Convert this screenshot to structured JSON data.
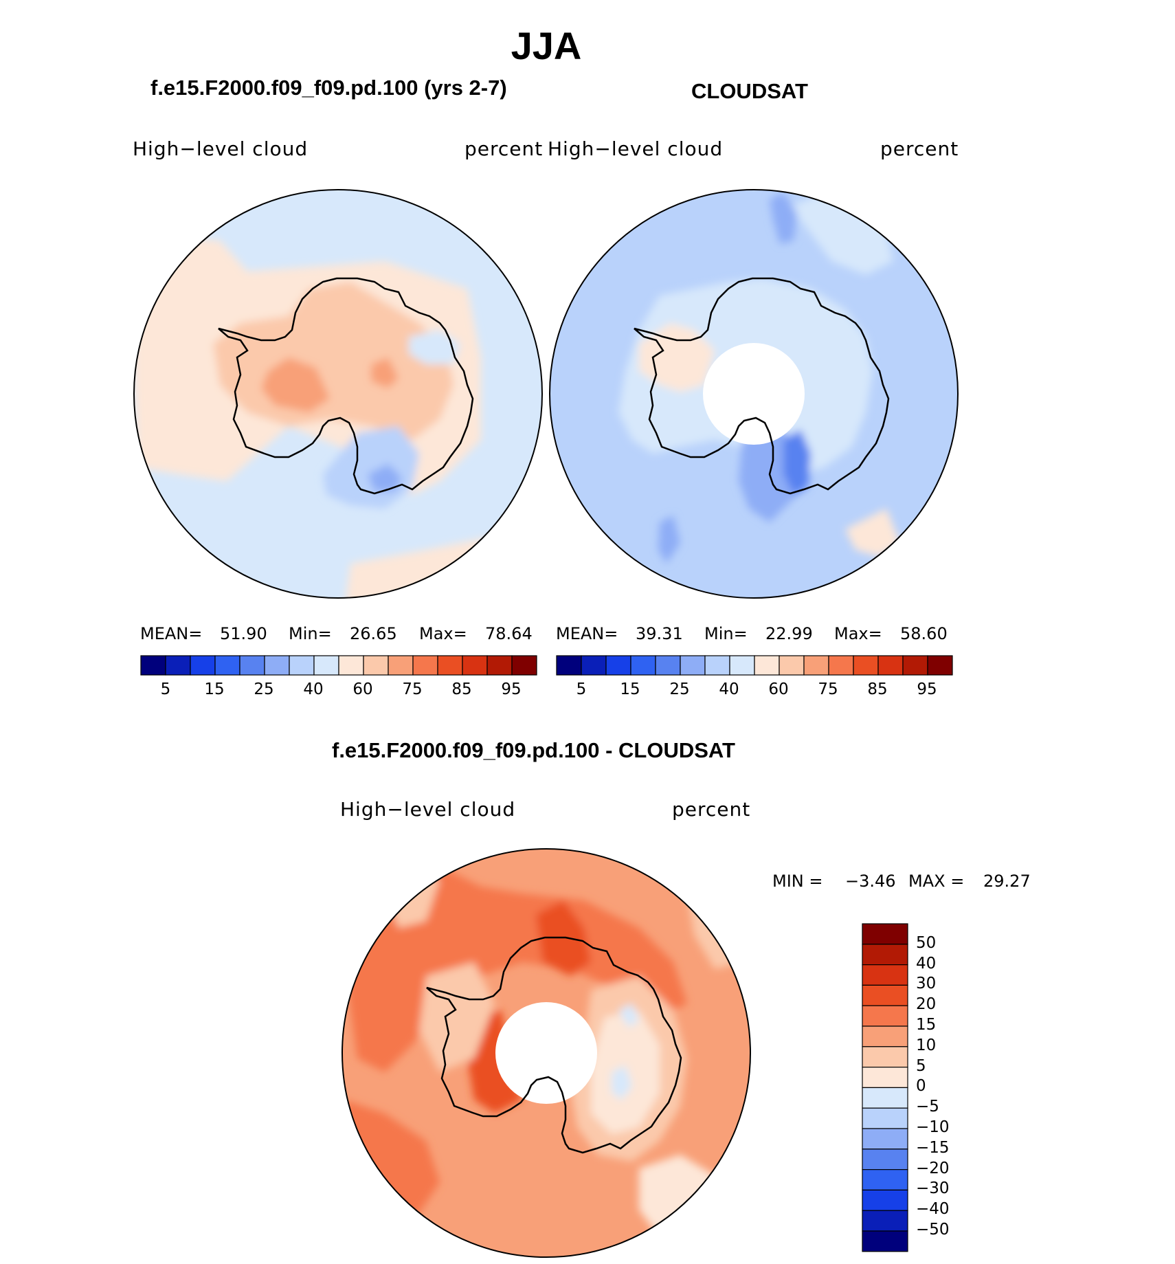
{
  "figure": {
    "season": "JJA",
    "case_title": "f.e15.F2000.f09_f09.pd.100 (yrs 2-7)",
    "obs_title": "CLOUDSAT",
    "diff_title": "f.e15.F2000.f09_f09.pd.100 - CLOUDSAT"
  },
  "panels": {
    "model": {
      "variable": "High−level cloud",
      "units": "percent",
      "mean_label": "MEAN=",
      "mean": "51.90",
      "min_label": "Min=",
      "min": "26.65",
      "max_label": "Max=",
      "max": "78.64"
    },
    "obs": {
      "variable": "High−level cloud",
      "units": "percent",
      "mean_label": "MEAN=",
      "mean": "39.31",
      "min_label": "Min=",
      "min": "22.99",
      "max_label": "Max=",
      "max": "58.60"
    },
    "diff": {
      "variable": "High−level cloud",
      "units": "percent",
      "min_label": "MIN =",
      "min": "−3.46",
      "max_label": "MAX =",
      "max": "29.27"
    }
  },
  "colorbar_abs": {
    "tick_labels": [
      "5",
      "15",
      "25",
      "40",
      "60",
      "75",
      "85",
      "95"
    ],
    "colors": [
      "#00007c",
      "#0a1fb8",
      "#1640e8",
      "#2f62f2",
      "#5882f0",
      "#8eadf6",
      "#b9d2fb",
      "#d7e8fb",
      "#fde7d8",
      "#fbc9ab",
      "#f8a078",
      "#f5774c",
      "#ea4f23",
      "#d83312",
      "#b21a05",
      "#7f0000"
    ]
  },
  "colorbar_diff": {
    "tick_labels": [
      "50",
      "40",
      "30",
      "20",
      "15",
      "10",
      "5",
      "0",
      "−5",
      "−10",
      "−15",
      "−20",
      "−30",
      "−40",
      "−50"
    ],
    "colors": [
      "#7f0000",
      "#b21a05",
      "#d83312",
      "#ea4f23",
      "#f5774c",
      "#f8a078",
      "#fbc9ab",
      "#fde7d8",
      "#d7e8fb",
      "#b9d2fb",
      "#8eadf6",
      "#5882f0",
      "#2f62f2",
      "#1640e8",
      "#0a1fb8",
      "#00007c"
    ]
  },
  "map_colors": {
    "c_light_blue": "#d7e8fb",
    "c_blue2": "#b9d2fb",
    "c_blue3": "#8eadf6",
    "c_blue4": "#5882f0",
    "c_peach": "#fde7d8",
    "c_salmon": "#fbc9ab",
    "c_orange1": "#f8a078",
    "c_orange2": "#f5774c",
    "c_orange3": "#ea4f23"
  }
}
